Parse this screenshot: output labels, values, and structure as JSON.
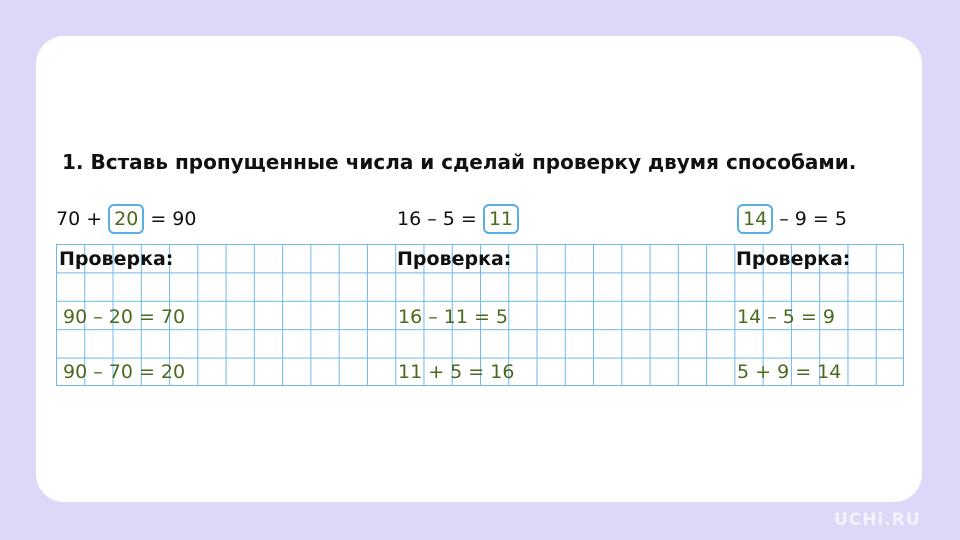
{
  "task": {
    "number": "1.",
    "text": "Вставь пропущенные числа и сделай проверку двумя способами."
  },
  "columns": [
    {
      "before": "70 +",
      "answer": "20",
      "after": "= 90",
      "check_label": "Проверка:",
      "checks": [
        "90 – 20 = 70",
        "90 – 70 = 20"
      ]
    },
    {
      "before": "16 – 5 =",
      "answer": "11",
      "after": "",
      "check_label": "Проверка:",
      "checks": [
        "16 – 11 = 5",
        "11 + 5 = 16"
      ]
    },
    {
      "before": "",
      "answer": "14",
      "after": "– 9 = 5",
      "check_label": "Проверка:",
      "checks": [
        "14 – 5 = 9",
        "5 + 9 = 14"
      ]
    }
  ],
  "logo": "UCHi.RU",
  "colors": {
    "background": "#dcd8f8",
    "answer": "#4b6a1e",
    "grid": "#6fb8ea"
  }
}
